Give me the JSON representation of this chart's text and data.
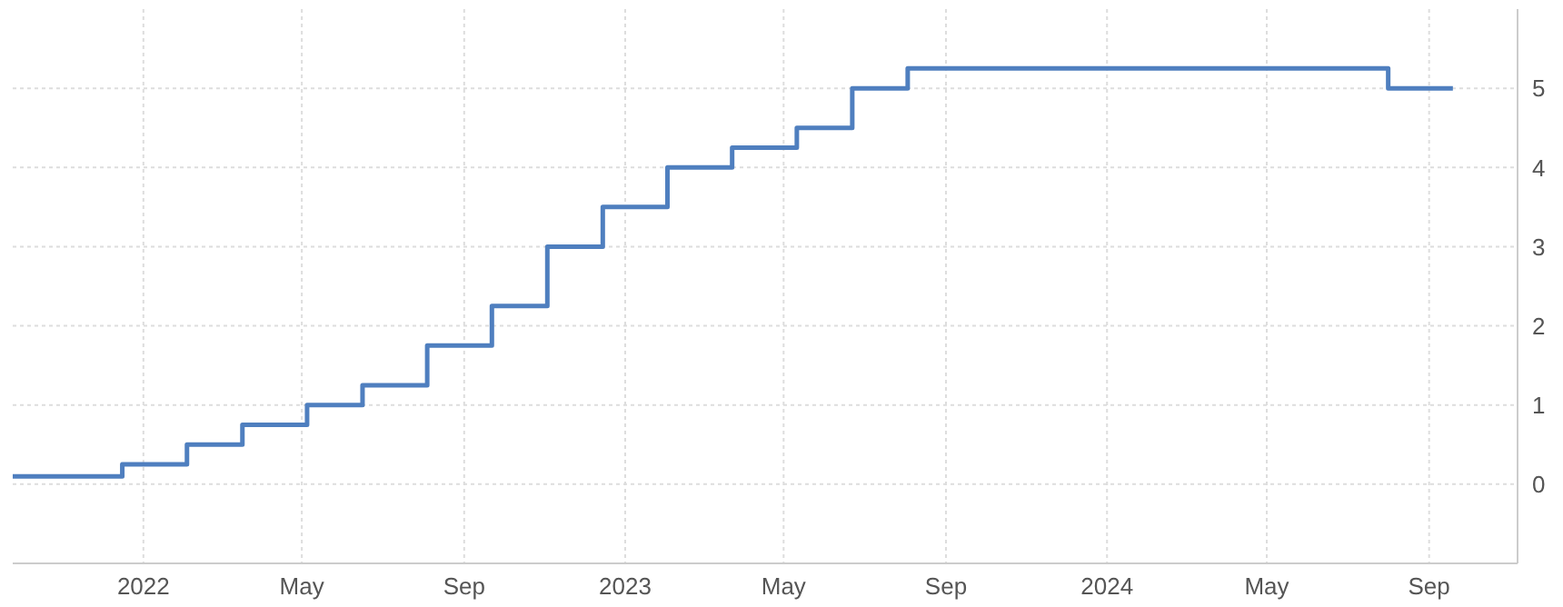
{
  "chart_data": {
    "type": "step",
    "x": [
      "2021-09-24",
      "2021-12-16",
      "2022-02-03",
      "2022-03-17",
      "2022-05-05",
      "2022-06-16",
      "2022-08-04",
      "2022-09-22",
      "2022-11-03",
      "2022-12-15",
      "2023-02-02",
      "2023-03-23",
      "2023-05-11",
      "2023-06-22",
      "2023-08-03",
      "2024-08-01",
      "2024-09-19"
    ],
    "series": [
      {
        "color": "#4f7fbf",
        "values": [
          0.1,
          0.25,
          0.5,
          0.75,
          1,
          1.25,
          1.75,
          2.25,
          3,
          3.5,
          4,
          4.25,
          4.5,
          5,
          5.25,
          5,
          5
        ]
      }
    ],
    "xlim": [
      "2021-09-24",
      "2024-11-07"
    ],
    "xticks": [
      {
        "value": "2022-01-01",
        "label": "2022"
      },
      {
        "value": "2022-05-01",
        "label": "May"
      },
      {
        "value": "2022-09-01",
        "label": "Sep"
      },
      {
        "value": "2023-01-01",
        "label": "2023"
      },
      {
        "value": "2023-05-01",
        "label": "May"
      },
      {
        "value": "2023-09-01",
        "label": "Sep"
      },
      {
        "value": "2024-01-01",
        "label": "2024"
      },
      {
        "value": "2024-05-01",
        "label": "May"
      },
      {
        "value": "2024-09-01",
        "label": "Sep"
      }
    ],
    "ylim": [
      -1,
      6
    ],
    "yticks": [
      0,
      1,
      2,
      3,
      4,
      5
    ],
    "grid": true,
    "legend": false,
    "marker": "none",
    "line_style": "solid"
  }
}
